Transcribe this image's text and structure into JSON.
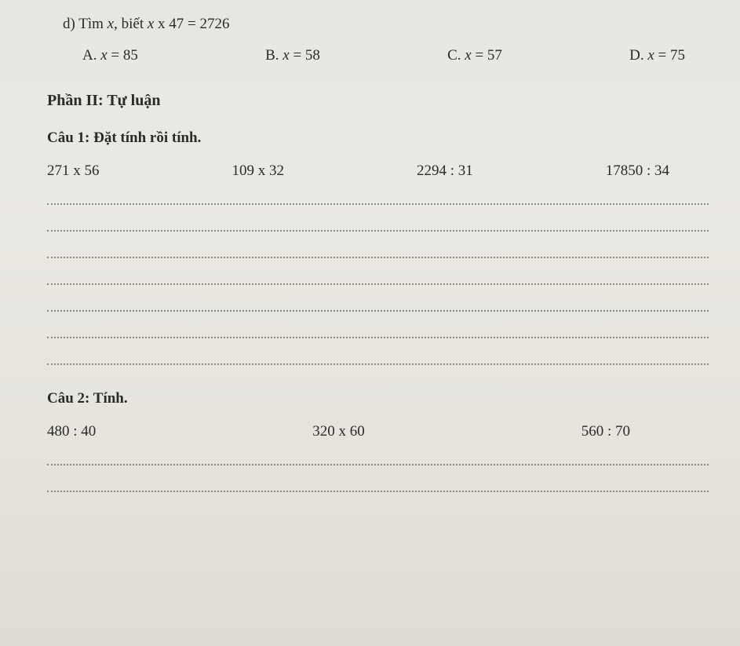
{
  "questionD": {
    "label": "d)",
    "text": "Tìm ",
    "variable": "x",
    "middle": ", biết ",
    "equation": " x 47 = 2726"
  },
  "options": {
    "a": {
      "label": "A. ",
      "var": "x",
      "eq": " = 85"
    },
    "b": {
      "label": "B. ",
      "var": "x",
      "eq": " = 58"
    },
    "c": {
      "label": "C. ",
      "var": "x",
      "eq": " = 57"
    },
    "d": {
      "label": "D. ",
      "var": "x",
      "eq": " = 75"
    }
  },
  "sectionHeader": "Phần II: Tự luận",
  "cau1": {
    "header": "Câu 1: Đặt tính rồi tính.",
    "problems": {
      "p1": "271 x 56",
      "p2": "109 x 32",
      "p3": "2294 : 31",
      "p4": "17850 : 34"
    }
  },
  "cau2": {
    "header": "Câu 2: Tính.",
    "problems": {
      "p1": "480 : 40",
      "p2": "320 x 60",
      "p3": "560 : 70"
    }
  }
}
